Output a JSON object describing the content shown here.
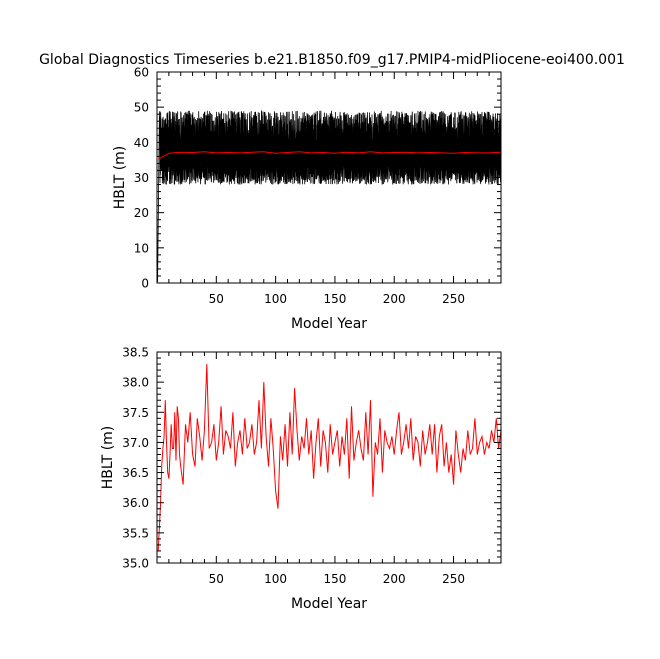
{
  "title": "Global Diagnostics Timeseries b.e21.B1850.f09_g17.PMIP4-midPliocene-eoi400.001",
  "chart_data": [
    {
      "type": "line",
      "xlabel": "Model Year",
      "ylabel": "HBLT (m)",
      "xlim": [
        0,
        290
      ],
      "ylim": [
        0,
        60
      ],
      "x_ticks": [
        50,
        100,
        150,
        200,
        250
      ],
      "y_ticks": [
        0,
        10,
        20,
        30,
        40,
        50,
        60
      ],
      "series": [
        {
          "color": "#000000",
          "style": "monthly",
          "x_start": 0.5,
          "x_end": 290,
          "start_value": 0.3,
          "envelope_low": [
            28,
            34
          ],
          "envelope_high": [
            40,
            49
          ]
        },
        {
          "color": "#ff0000",
          "style": "annual_mean",
          "x": [
            1,
            10,
            20,
            30,
            40,
            50,
            60,
            70,
            80,
            90,
            100,
            110,
            120,
            130,
            140,
            150,
            160,
            170,
            180,
            190,
            200,
            210,
            220,
            230,
            240,
            250,
            260,
            270,
            280,
            290
          ],
          "y": [
            35.2,
            36.9,
            37.2,
            37.1,
            37.3,
            37.0,
            37.1,
            37.0,
            37.2,
            37.3,
            36.9,
            37.1,
            37.3,
            37.0,
            37.1,
            36.9,
            37.2,
            37.0,
            37.3,
            37.0,
            37.1,
            37.2,
            37.0,
            37.1,
            37.0,
            36.9,
            37.1,
            37.0,
            37.0,
            37.2
          ]
        }
      ]
    },
    {
      "type": "line",
      "xlabel": "Model Year",
      "ylabel": "HBLT (m)",
      "xlim": [
        0,
        290
      ],
      "ylim": [
        35.0,
        38.5
      ],
      "x_ticks": [
        50,
        100,
        150,
        200,
        250
      ],
      "y_ticks": [
        "35.0",
        "35.5",
        "36.0",
        "36.5",
        "37.0",
        "37.5",
        "38.0",
        "38.5"
      ],
      "series": [
        {
          "color": "#ff0000",
          "x": [
            1,
            2,
            3,
            4,
            5,
            6,
            7,
            8,
            9,
            10,
            11,
            12,
            13,
            14,
            15,
            16,
            17,
            18,
            19,
            20,
            22,
            24,
            26,
            28,
            30,
            32,
            34,
            36,
            38,
            40,
            42,
            44,
            46,
            48,
            50,
            52,
            54,
            56,
            58,
            60,
            62,
            64,
            66,
            68,
            70,
            72,
            74,
            76,
            78,
            80,
            82,
            84,
            86,
            88,
            90,
            92,
            94,
            96,
            98,
            100,
            102,
            104,
            106,
            108,
            110,
            112,
            114,
            116,
            118,
            120,
            122,
            124,
            126,
            128,
            130,
            132,
            134,
            136,
            138,
            140,
            142,
            144,
            146,
            148,
            150,
            152,
            154,
            156,
            158,
            160,
            162,
            164,
            166,
            168,
            170,
            172,
            174,
            176,
            178,
            180,
            182,
            184,
            186,
            188,
            190,
            192,
            194,
            196,
            198,
            200,
            202,
            204,
            206,
            208,
            210,
            212,
            214,
            216,
            218,
            220,
            222,
            224,
            226,
            228,
            230,
            232,
            234,
            236,
            238,
            240,
            242,
            244,
            246,
            248,
            250,
            252,
            254,
            256,
            258,
            260,
            262,
            264,
            266,
            268,
            270,
            272,
            274,
            276,
            278,
            280,
            282,
            284,
            286,
            288,
            290
          ],
          "y": [
            35.2,
            35.6,
            36.0,
            36.6,
            36.9,
            37.1,
            37.7,
            37.0,
            36.5,
            36.4,
            36.8,
            37.3,
            36.9,
            36.9,
            37.5,
            36.7,
            37.6,
            37.4,
            36.8,
            36.6,
            36.3,
            37.3,
            37.0,
            37.5,
            36.8,
            36.6,
            37.4,
            37.1,
            36.7,
            37.2,
            38.3,
            36.9,
            37.0,
            37.3,
            36.7,
            37.0,
            37.6,
            36.8,
            37.2,
            37.1,
            36.9,
            37.5,
            36.6,
            37.0,
            37.2,
            36.8,
            37.4,
            36.9,
            37.0,
            37.3,
            36.8,
            37.0,
            37.7,
            36.9,
            38.0,
            37.1,
            36.6,
            37.4,
            36.9,
            36.2,
            35.9,
            37.1,
            36.7,
            37.3,
            36.6,
            37.5,
            36.8,
            37.9,
            37.2,
            36.7,
            37.1,
            36.9,
            37.4,
            36.8,
            37.2,
            36.4,
            37.0,
            37.4,
            36.6,
            37.2,
            37.0,
            36.5,
            37.3,
            36.8,
            37.0,
            37.2,
            36.6,
            37.1,
            36.8,
            37.4,
            36.4,
            37.6,
            36.7,
            37.0,
            37.2,
            36.9,
            36.7,
            37.5,
            36.8,
            37.7,
            36.1,
            37.0,
            36.8,
            37.4,
            36.5,
            37.2,
            37.0,
            36.9,
            37.1,
            36.8,
            37.2,
            37.5,
            36.8,
            37.0,
            37.3,
            36.9,
            37.4,
            36.7,
            37.1,
            37.0,
            36.6,
            37.2,
            36.8,
            37.0,
            37.3,
            36.8,
            37.3,
            36.5,
            37.1,
            37.3,
            36.6,
            37.0,
            36.5,
            36.8,
            36.3,
            37.2,
            36.8,
            36.5,
            36.9,
            36.7,
            37.2,
            36.8,
            36.9,
            37.4,
            36.8,
            37.0,
            37.1,
            36.8,
            37.0,
            36.9,
            37.2,
            37.0,
            37.4,
            36.9,
            37.2
          ]
        }
      ]
    }
  ]
}
